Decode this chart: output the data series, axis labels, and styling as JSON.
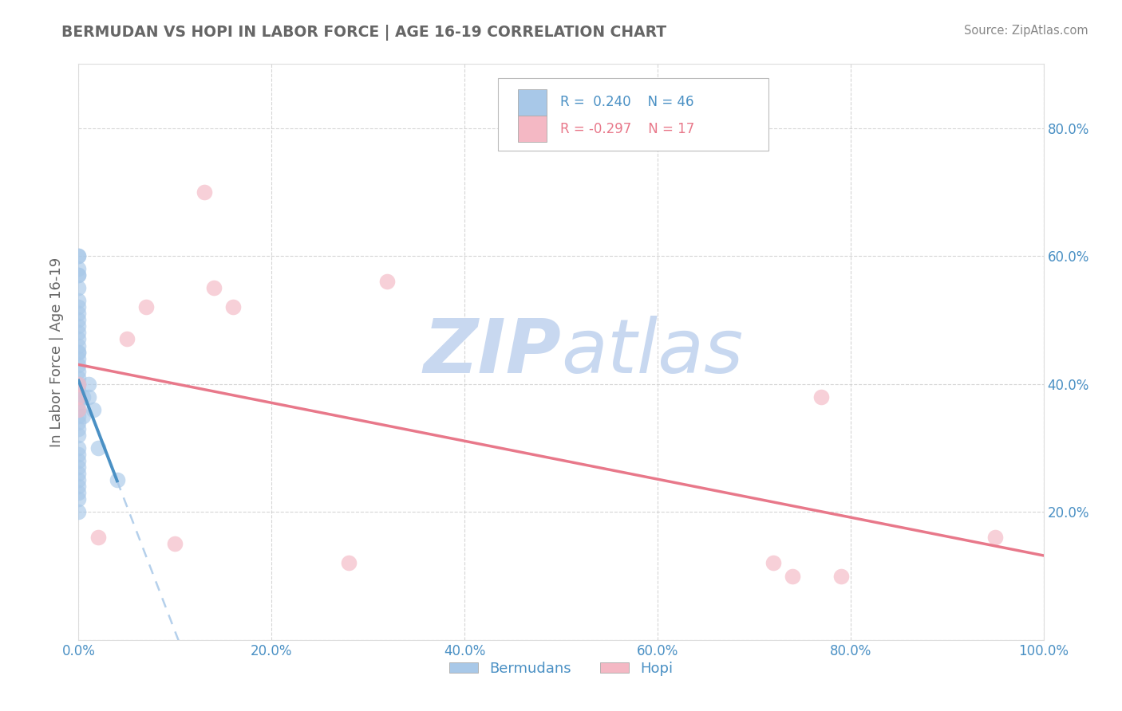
{
  "title": "BERMUDAN VS HOPI IN LABOR FORCE | AGE 16-19 CORRELATION CHART",
  "source": "Source: ZipAtlas.com",
  "xlabel": "",
  "ylabel": "In Labor Force | Age 16-19",
  "xlim": [
    0.0,
    1.0
  ],
  "ylim": [
    0.0,
    0.9
  ],
  "xticks": [
    0.0,
    0.2,
    0.4,
    0.6,
    0.8,
    1.0
  ],
  "yticks": [
    0.0,
    0.2,
    0.4,
    0.6,
    0.8
  ],
  "xticklabels": [
    "0.0%",
    "20.0%",
    "40.0%",
    "60.0%",
    "80.0%",
    "100.0%"
  ],
  "yticklabels_right": [
    "",
    "20.0%",
    "40.0%",
    "60.0%",
    "80.0%"
  ],
  "bermudans_x": [
    0.0,
    0.0,
    0.0,
    0.0,
    0.0,
    0.0,
    0.0,
    0.0,
    0.0,
    0.0,
    0.0,
    0.0,
    0.0,
    0.0,
    0.0,
    0.0,
    0.0,
    0.0,
    0.0,
    0.0,
    0.0,
    0.0,
    0.0,
    0.0,
    0.0,
    0.0,
    0.0,
    0.0,
    0.0,
    0.0,
    0.0,
    0.0,
    0.0,
    0.0,
    0.0,
    0.0,
    0.0,
    0.0,
    0.0,
    0.005,
    0.005,
    0.01,
    0.01,
    0.015,
    0.02,
    0.04
  ],
  "bermudans_y": [
    0.58,
    0.6,
    0.6,
    0.57,
    0.57,
    0.55,
    0.53,
    0.52,
    0.51,
    0.5,
    0.49,
    0.48,
    0.47,
    0.46,
    0.45,
    0.45,
    0.44,
    0.43,
    0.42,
    0.41,
    0.4,
    0.39,
    0.38,
    0.37,
    0.36,
    0.35,
    0.34,
    0.33,
    0.32,
    0.3,
    0.29,
    0.28,
    0.27,
    0.26,
    0.25,
    0.24,
    0.23,
    0.22,
    0.2,
    0.38,
    0.35,
    0.4,
    0.38,
    0.36,
    0.3,
    0.25
  ],
  "hopi_x": [
    0.0,
    0.0,
    0.0,
    0.02,
    0.05,
    0.07,
    0.1,
    0.13,
    0.14,
    0.16,
    0.28,
    0.32,
    0.72,
    0.74,
    0.77,
    0.79,
    0.95
  ],
  "hopi_y": [
    0.38,
    0.36,
    0.4,
    0.16,
    0.47,
    0.52,
    0.15,
    0.7,
    0.55,
    0.52,
    0.12,
    0.56,
    0.12,
    0.1,
    0.38,
    0.1,
    0.16
  ],
  "bermudans_r": 0.24,
  "bermudans_n": 46,
  "hopi_r": -0.297,
  "hopi_n": 17,
  "blue_color": "#a8c8e8",
  "pink_color": "#f4b8c4",
  "blue_line_color": "#4a90c4",
  "pink_line_color": "#e8788a",
  "blue_dashed_color": "#a8c8e8",
  "watermark_zip_color": "#c8d8f0",
  "watermark_atlas_color": "#c8d8f0",
  "background_color": "#ffffff",
  "grid_color": "#cccccc",
  "title_color": "#666666",
  "axis_tick_color": "#4a90c4",
  "ylabel_color": "#666666"
}
